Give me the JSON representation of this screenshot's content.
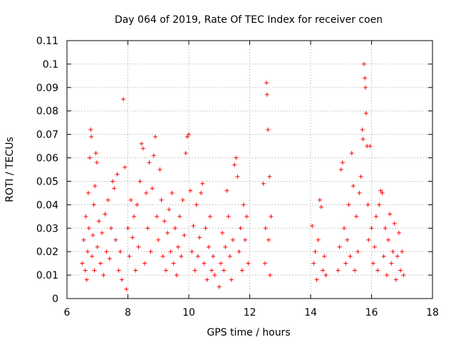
{
  "chart_data": {
    "type": "scatter",
    "title": "Day 064 of 2019, Rate Of TEC Index for receiver coen",
    "xlabel": "GPS time / hours",
    "ylabel": "ROTI / TECUs",
    "xlim": [
      6,
      18
    ],
    "ylim": [
      0,
      0.11
    ],
    "xticks": [
      6,
      8,
      10,
      12,
      14,
      16,
      18
    ],
    "xtick_labels": [
      "6",
      "8",
      "10",
      "12",
      "14",
      "16",
      "18"
    ],
    "yticks": [
      0,
      0.01,
      0.02,
      0.03,
      0.04,
      0.05,
      0.06,
      0.07,
      0.08,
      0.09,
      0.1,
      0.11
    ],
    "ytick_labels": [
      "0",
      "0.01",
      "0.02",
      "0.03",
      "0.04",
      "0.05",
      "0.06",
      "0.07",
      "0.08",
      "0.09",
      "0.1",
      "0.11"
    ],
    "grid": true,
    "marker": "+",
    "color": "#ff0000",
    "series": [
      {
        "name": "ROTI",
        "points": [
          [
            6.5,
            0.015
          ],
          [
            6.55,
            0.025
          ],
          [
            6.6,
            0.012
          ],
          [
            6.62,
            0.035
          ],
          [
            6.65,
            0.008
          ],
          [
            6.68,
            0.02
          ],
          [
            6.7,
            0.045
          ],
          [
            6.72,
            0.03
          ],
          [
            6.75,
            0.06
          ],
          [
            6.78,
            0.072
          ],
          [
            6.8,
            0.069
          ],
          [
            6.82,
            0.018
          ],
          [
            6.85,
            0.027
          ],
          [
            6.88,
            0.04
          ],
          [
            6.9,
            0.012
          ],
          [
            6.92,
            0.048
          ],
          [
            6.95,
            0.062
          ],
          [
            6.98,
            0.058
          ],
          [
            7.0,
            0.022
          ],
          [
            7.05,
            0.033
          ],
          [
            7.1,
            0.015
          ],
          [
            7.15,
            0.028
          ],
          [
            7.2,
            0.01
          ],
          [
            7.25,
            0.036
          ],
          [
            7.3,
            0.02
          ],
          [
            7.35,
            0.042
          ],
          [
            7.4,
            0.017
          ],
          [
            7.45,
            0.03
          ],
          [
            7.5,
            0.05
          ],
          [
            7.55,
            0.047
          ],
          [
            7.6,
            0.025
          ],
          [
            7.65,
            0.053
          ],
          [
            7.7,
            0.012
          ],
          [
            7.75,
            0.02
          ],
          [
            7.8,
            0.008
          ],
          [
            7.85,
            0.085
          ],
          [
            7.9,
            0.056
          ],
          [
            7.95,
            0.004
          ],
          [
            8.0,
            0.03
          ],
          [
            8.05,
            0.018
          ],
          [
            8.1,
            0.042
          ],
          [
            8.15,
            0.026
          ],
          [
            8.2,
            0.035
          ],
          [
            8.25,
            0.012
          ],
          [
            8.3,
            0.04
          ],
          [
            8.35,
            0.022
          ],
          [
            8.4,
            0.05
          ],
          [
            8.45,
            0.066
          ],
          [
            8.5,
            0.064
          ],
          [
            8.55,
            0.015
          ],
          [
            8.6,
            0.045
          ],
          [
            8.65,
            0.03
          ],
          [
            8.7,
            0.058
          ],
          [
            8.75,
            0.02
          ],
          [
            8.8,
            0.047
          ],
          [
            8.85,
            0.061
          ],
          [
            8.9,
            0.069
          ],
          [
            8.95,
            0.035
          ],
          [
            9.0,
            0.025
          ],
          [
            9.05,
            0.055
          ],
          [
            9.1,
            0.042
          ],
          [
            9.15,
            0.018
          ],
          [
            9.2,
            0.033
          ],
          [
            9.25,
            0.012
          ],
          [
            9.3,
            0.028
          ],
          [
            9.35,
            0.038
          ],
          [
            9.4,
            0.02
          ],
          [
            9.45,
            0.045
          ],
          [
            9.5,
            0.015
          ],
          [
            9.55,
            0.03
          ],
          [
            9.6,
            0.01
          ],
          [
            9.65,
            0.022
          ],
          [
            9.7,
            0.035
          ],
          [
            9.75,
            0.018
          ],
          [
            9.8,
            0.042
          ],
          [
            9.85,
            0.027
          ],
          [
            9.9,
            0.062
          ],
          [
            9.95,
            0.069
          ],
          [
            10.0,
            0.07
          ],
          [
            10.05,
            0.046
          ],
          [
            10.1,
            0.02
          ],
          [
            10.15,
            0.031
          ],
          [
            10.2,
            0.012
          ],
          [
            10.25,
            0.04
          ],
          [
            10.3,
            0.018
          ],
          [
            10.35,
            0.026
          ],
          [
            10.4,
            0.045
          ],
          [
            10.45,
            0.049
          ],
          [
            10.5,
            0.015
          ],
          [
            10.55,
            0.03
          ],
          [
            10.6,
            0.008
          ],
          [
            10.65,
            0.022
          ],
          [
            10.7,
            0.035
          ],
          [
            10.75,
            0.012
          ],
          [
            10.8,
            0.018
          ],
          [
            10.85,
            0.01
          ],
          [
            11.0,
            0.005
          ],
          [
            11.05,
            0.015
          ],
          [
            11.1,
            0.028
          ],
          [
            11.15,
            0.012
          ],
          [
            11.2,
            0.022
          ],
          [
            11.25,
            0.046
          ],
          [
            11.3,
            0.035
          ],
          [
            11.35,
            0.018
          ],
          [
            11.4,
            0.008
          ],
          [
            11.45,
            0.025
          ],
          [
            11.5,
            0.057
          ],
          [
            11.55,
            0.06
          ],
          [
            11.6,
            0.052
          ],
          [
            11.65,
            0.02
          ],
          [
            11.7,
            0.03
          ],
          [
            11.75,
            0.012
          ],
          [
            11.8,
            0.04
          ],
          [
            11.85,
            0.025
          ],
          [
            11.9,
            0.035
          ],
          [
            11.95,
            0.015
          ],
          [
            12.45,
            0.049
          ],
          [
            12.5,
            0.015
          ],
          [
            12.52,
            0.03
          ],
          [
            12.55,
            0.092
          ],
          [
            12.57,
            0.087
          ],
          [
            12.6,
            0.072
          ],
          [
            12.62,
            0.025
          ],
          [
            12.65,
            0.052
          ],
          [
            12.67,
            0.01
          ],
          [
            12.7,
            0.035
          ],
          [
            14.05,
            0.031
          ],
          [
            14.1,
            0.015
          ],
          [
            14.15,
            0.02
          ],
          [
            14.2,
            0.008
          ],
          [
            14.25,
            0.025
          ],
          [
            14.3,
            0.042
          ],
          [
            14.35,
            0.039
          ],
          [
            14.4,
            0.012
          ],
          [
            14.45,
            0.018
          ],
          [
            14.5,
            0.01
          ],
          [
            14.9,
            0.012
          ],
          [
            14.95,
            0.022
          ],
          [
            15.0,
            0.055
          ],
          [
            15.05,
            0.058
          ],
          [
            15.1,
            0.03
          ],
          [
            15.15,
            0.015
          ],
          [
            15.2,
            0.025
          ],
          [
            15.25,
            0.04
          ],
          [
            15.3,
            0.018
          ],
          [
            15.35,
            0.062
          ],
          [
            15.4,
            0.048
          ],
          [
            15.45,
            0.012
          ],
          [
            15.5,
            0.035
          ],
          [
            15.55,
            0.02
          ],
          [
            15.6,
            0.045
          ],
          [
            15.65,
            0.052
          ],
          [
            15.7,
            0.072
          ],
          [
            15.72,
            0.068
          ],
          [
            15.75,
            0.1
          ],
          [
            15.78,
            0.094
          ],
          [
            15.8,
            0.09
          ],
          [
            15.82,
            0.079
          ],
          [
            15.85,
            0.065
          ],
          [
            15.88,
            0.04
          ],
          [
            15.9,
            0.025
          ],
          [
            15.95,
            0.065
          ],
          [
            16.0,
            0.03
          ],
          [
            16.05,
            0.015
          ],
          [
            16.1,
            0.022
          ],
          [
            16.15,
            0.035
          ],
          [
            16.2,
            0.012
          ],
          [
            16.25,
            0.04
          ],
          [
            16.3,
            0.046
          ],
          [
            16.35,
            0.045
          ],
          [
            16.4,
            0.018
          ],
          [
            16.45,
            0.03
          ],
          [
            16.5,
            0.01
          ],
          [
            16.55,
            0.025
          ],
          [
            16.6,
            0.036
          ],
          [
            16.65,
            0.015
          ],
          [
            16.7,
            0.02
          ],
          [
            16.75,
            0.032
          ],
          [
            16.8,
            0.008
          ],
          [
            16.85,
            0.018
          ],
          [
            16.9,
            0.028
          ],
          [
            16.95,
            0.012
          ],
          [
            17.0,
            0.02
          ],
          [
            17.05,
            0.01
          ]
        ]
      }
    ]
  }
}
